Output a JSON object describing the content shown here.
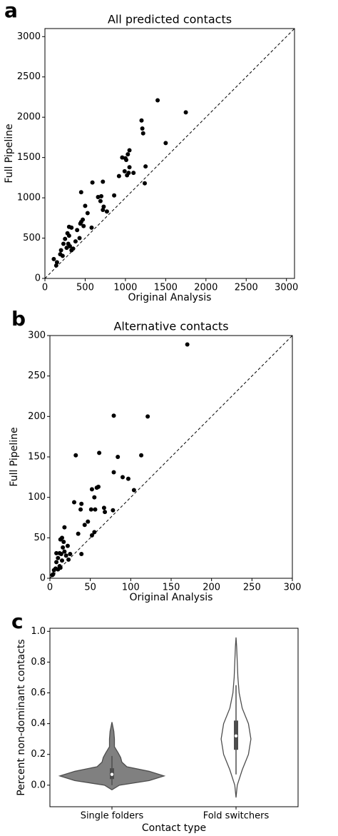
{
  "chart_data": [
    {
      "type": "scatter",
      "panel": "a",
      "title": "All predicted contacts",
      "xlabel": "Original Analysis",
      "ylabel": "Full Pipeline",
      "xlim": [
        0,
        3100
      ],
      "ylim": [
        0,
        3100
      ],
      "xticks": [
        0,
        500,
        1000,
        1500,
        2000,
        2500,
        3000
      ],
      "yticks": [
        0,
        500,
        1000,
        1500,
        2000,
        2500,
        3000
      ],
      "identity_line": true,
      "color": "#000000",
      "x": [
        1400,
        1750,
        1200,
        1210,
        1220,
        1500,
        1050,
        1030,
        1000,
        960,
        1010,
        1050,
        1250,
        990,
        1040,
        1100,
        1020,
        920,
        1240,
        590,
        720,
        450,
        660,
        700,
        860,
        690,
        730,
        720,
        770,
        530,
        500,
        470,
        450,
        440,
        480,
        580,
        300,
        330,
        400,
        280,
        300,
        250,
        230,
        290,
        380,
        430,
        310,
        350,
        270,
        330,
        200,
        190,
        220,
        110,
        150,
        140
      ],
      "y": [
        2210,
        2060,
        1960,
        1860,
        1800,
        1680,
        1590,
        1540,
        1490,
        1500,
        1470,
        1380,
        1390,
        1330,
        1310,
        1310,
        1280,
        1270,
        1180,
        1190,
        1200,
        1070,
        1010,
        1020,
        1030,
        960,
        890,
        850,
        830,
        810,
        900,
        730,
        700,
        680,
        650,
        630,
        640,
        630,
        600,
        560,
        530,
        490,
        430,
        430,
        460,
        500,
        400,
        370,
        380,
        350,
        350,
        300,
        280,
        240,
        200,
        160
      ]
    },
    {
      "type": "scatter",
      "panel": "b",
      "title": "Alternative contacts",
      "xlabel": "Original Analysis",
      "ylabel": "Full Pipeline",
      "xlim": [
        0,
        300
      ],
      "ylim": [
        0,
        300
      ],
      "xticks": [
        0,
        50,
        100,
        150,
        200,
        250,
        300
      ],
      "yticks": [
        0,
        50,
        100,
        150,
        200,
        250,
        300
      ],
      "identity_line": true,
      "color": "#000000",
      "x": [
        170,
        79,
        121,
        32,
        61,
        113,
        84,
        79,
        90,
        97,
        60,
        58,
        52,
        104,
        55,
        30,
        39,
        56,
        51,
        78,
        67,
        68,
        38,
        47,
        43,
        55,
        52,
        35,
        18,
        15,
        13,
        17,
        22,
        16,
        8,
        12,
        18,
        25,
        14,
        20,
        23,
        10,
        15,
        8,
        12,
        13,
        7,
        10,
        5,
        39,
        4,
        3
      ],
      "y": [
        289,
        201,
        200,
        152,
        155,
        152,
        150,
        131,
        125,
        123,
        113,
        112,
        110,
        109,
        100,
        94,
        92,
        85,
        85,
        84,
        87,
        82,
        85,
        70,
        66,
        57,
        53,
        55,
        63,
        50,
        48,
        45,
        40,
        38,
        31,
        31,
        33,
        30,
        30,
        28,
        23,
        25,
        22,
        20,
        15,
        13,
        12,
        11,
        10,
        30,
        5,
        4
      ]
    },
    {
      "type": "violin",
      "panel": "c",
      "xlabel": "Contact type",
      "ylabel": "Percent non-dominant contacts",
      "ylim": [
        -0.14,
        1.02
      ],
      "yticks": [
        {
          "value": 0,
          "label": "0.0"
        },
        0.2,
        0.4,
        0.6,
        0.8,
        {
          "value": 1,
          "label": "1.0"
        }
      ],
      "edgecolor": "#4d4d4d",
      "categories": [
        "Single folders",
        "Fold switchers"
      ],
      "violins": [
        {
          "color": "#808080",
          "min": 0.0,
          "q1": 0.04,
          "median": 0.07,
          "q3": 0.11,
          "max": 0.19,
          "density": {
            "y": [
              -0.03,
              0.0,
              0.03,
              0.06,
              0.09,
              0.12,
              0.15,
              0.18,
              0.21,
              0.25,
              0.3,
              0.35,
              0.41
            ],
            "width": [
              0,
              0.06,
              0.3,
              0.42,
              0.3,
              0.12,
              0.08,
              0.07,
              0.05,
              0.02,
              0.02,
              0.015,
              0
            ]
          }
        },
        {
          "color": "#ffffff",
          "min": 0.07,
          "q1": 0.23,
          "median": 0.32,
          "q3": 0.42,
          "max": 0.65,
          "density": {
            "y": [
              -0.08,
              0.0,
              0.1,
              0.2,
              0.3,
              0.4,
              0.5,
              0.6,
              0.7,
              0.8,
              0.9,
              0.96
            ],
            "width": [
              0,
              0.01,
              0.05,
              0.1,
              0.12,
              0.1,
              0.05,
              0.025,
              0.015,
              0.01,
              0.005,
              0
            ]
          }
        }
      ]
    }
  ]
}
